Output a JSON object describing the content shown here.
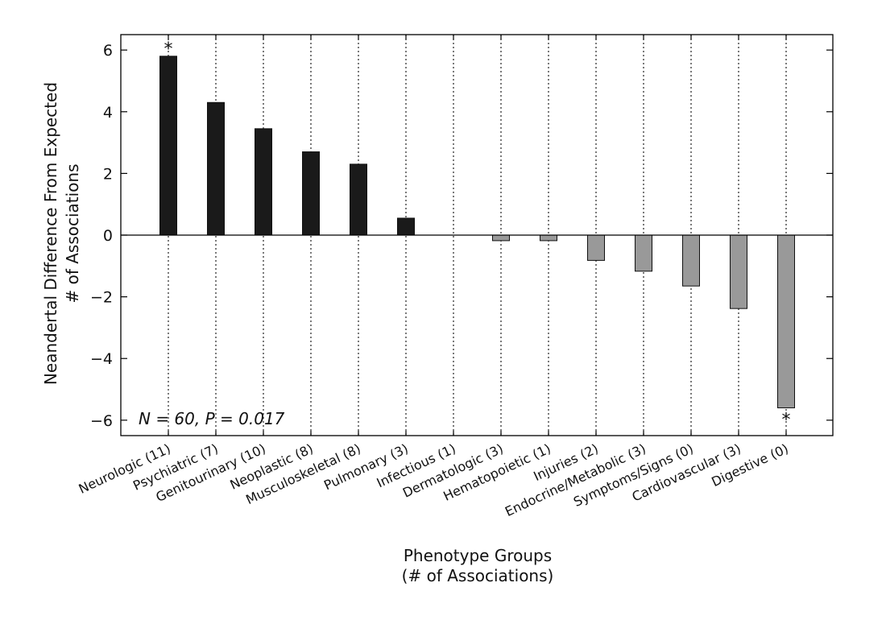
{
  "chart_data": {
    "type": "bar",
    "categories": [
      "Neurologic (11)",
      "Psychiatric (7)",
      "Genitourinary (10)",
      "Neoplastic (8)",
      "Musculoskeletal (8)",
      "Pulmonary (3)",
      "Infectious (1)",
      "Dermatologic (3)",
      "Hematopoietic (1)",
      "Injuries (2)",
      "Endocrine/Metabolic (3)",
      "Symptoms/Signs (0)",
      "Cardiovascular (3)",
      "Digestive (0)"
    ],
    "values": [
      5.8,
      4.3,
      3.45,
      2.7,
      2.3,
      0.55,
      0.0,
      -0.18,
      -0.18,
      -0.82,
      -1.17,
      -1.65,
      -2.38,
      -5.6
    ],
    "significant": [
      true,
      false,
      false,
      false,
      false,
      false,
      false,
      false,
      false,
      false,
      false,
      false,
      false,
      true
    ],
    "significance_marker": "*",
    "xlabel_line1": "Phenotype Groups",
    "xlabel_line2": "(# of Associations)",
    "ylabel_line1": "Neandertal Difference From Expected",
    "ylabel_line2": "# of Associations",
    "ylim": [
      -6.5,
      6.5
    ],
    "yticks": [
      -6,
      -4,
      -2,
      0,
      2,
      4,
      6
    ],
    "ytick_labels": [
      "−6",
      "−4",
      "−2",
      "0",
      "2",
      "4",
      "6"
    ],
    "annotation": "N = 60, P = 0.017",
    "grid": "vertical dotted",
    "colors": {
      "positive": "#1a1a1a",
      "negative": "#999999",
      "axis": "#000000"
    }
  }
}
